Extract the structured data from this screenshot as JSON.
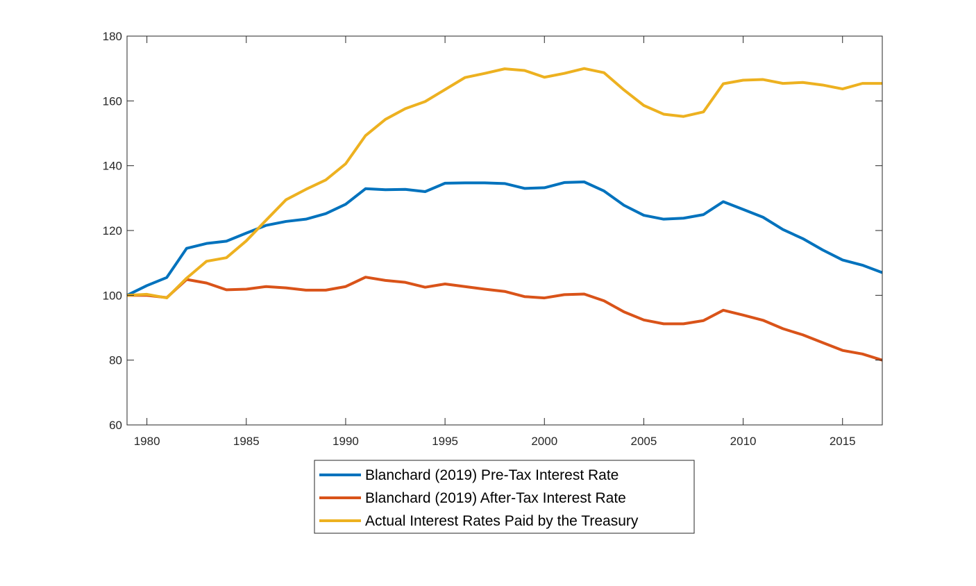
{
  "chart_data": {
    "type": "line",
    "title": "",
    "xlabel": "",
    "ylabel": "",
    "xlim": [
      1979,
      2017
    ],
    "ylim": [
      60,
      180
    ],
    "xticks": [
      1980,
      1985,
      1990,
      1995,
      2000,
      2005,
      2010,
      2015
    ],
    "yticks": [
      60,
      80,
      100,
      120,
      140,
      160,
      180
    ],
    "grid": false,
    "legend_position": "bottom-center-outside",
    "x": [
      1979,
      1980,
      1981,
      1982,
      1983,
      1984,
      1985,
      1986,
      1987,
      1988,
      1989,
      1990,
      1991,
      1992,
      1993,
      1994,
      1995,
      1996,
      1997,
      1998,
      1999,
      2000,
      2001,
      2002,
      2003,
      2004,
      2005,
      2006,
      2007,
      2008,
      2009,
      2010,
      2011,
      2012,
      2013,
      2014,
      2015,
      2016,
      2017
    ],
    "series": [
      {
        "name": "Blanchard (2019) Pre-Tax Interest Rate",
        "color": "#0072BD",
        "values": [
          100,
          103,
          105.5,
          114.5,
          116,
          116.7,
          119.2,
          121.6,
          122.8,
          123.5,
          125.2,
          128.1,
          132.9,
          132.6,
          132.7,
          132,
          134.6,
          134.7,
          134.7,
          134.5,
          133,
          133.2,
          134.8,
          135,
          132.2,
          127.8,
          124.7,
          123.5,
          123.8,
          124.9,
          128.9,
          126.5,
          124.1,
          120.3,
          117.5,
          114,
          110.9,
          109.3,
          107
        ]
      },
      {
        "name": "Blanchard (2019) After-Tax Interest Rate",
        "color": "#D95319",
        "values": [
          100,
          100,
          99.3,
          104.9,
          103.8,
          101.7,
          101.9,
          102.7,
          102.3,
          101.6,
          101.6,
          102.7,
          105.6,
          104.6,
          104,
          102.5,
          103.5,
          102.7,
          101.9,
          101.2,
          99.6,
          99.2,
          100.2,
          100.4,
          98.3,
          94.9,
          92.4,
          91.2,
          91.2,
          92.2,
          95.4,
          93.9,
          92.3,
          89.7,
          87.8,
          85.4,
          83,
          81.9,
          80
        ]
      },
      {
        "name": "Actual Interest Rates Paid by the Treasury",
        "color": "#EDB120",
        "values": [
          100,
          100.3,
          99.2,
          105.3,
          110.5,
          111.6,
          116.8,
          123.2,
          129.5,
          132.7,
          135.6,
          140.6,
          149.3,
          154.3,
          157.6,
          159.8,
          163.5,
          167.2,
          168.5,
          169.9,
          169.4,
          167.3,
          168.5,
          170,
          168.7,
          163.4,
          158.6,
          155.9,
          155.2,
          156.6,
          165.3,
          166.4,
          166.6,
          165.4,
          165.7,
          164.9,
          163.7,
          165.4,
          165.4
        ]
      }
    ]
  }
}
